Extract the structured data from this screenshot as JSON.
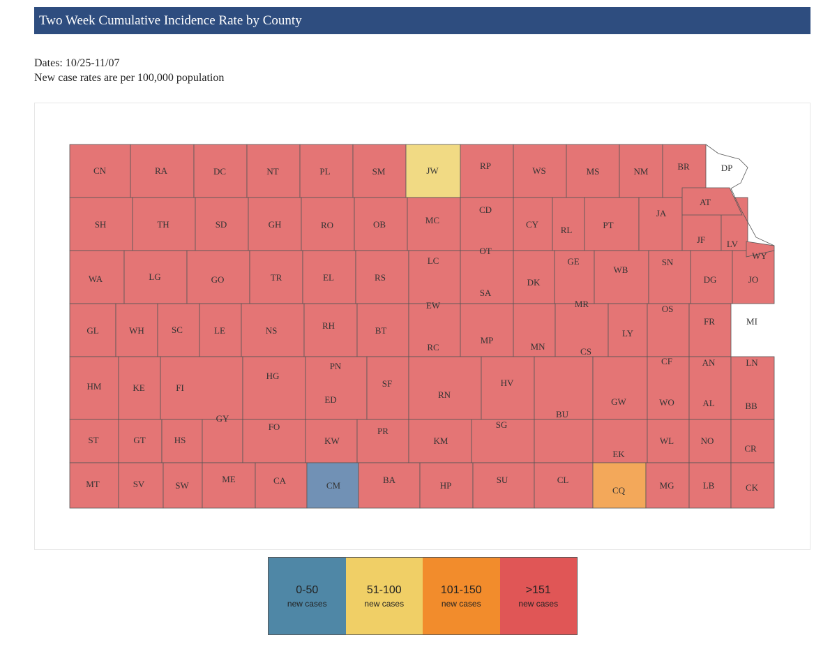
{
  "header": {
    "title": "Two Week Cumulative Incidence Rate by County"
  },
  "info": {
    "dates": "Dates: 10/25-11/07",
    "note": "New case rates are per 100,000 population"
  },
  "colors": {
    "low": "#7191b5",
    "mid": "#f1da84",
    "high": "#f3a85a",
    "very_high": "#e47575",
    "outline": "#555555",
    "legend_low": "#4f87a6",
    "legend_mid": "#f0cf66",
    "legend_high": "#f28c2c",
    "legend_very_high": "#e05656"
  },
  "legend": [
    {
      "range": "0-50",
      "sub": "new cases",
      "category": "low"
    },
    {
      "range": "51-100",
      "sub": "new cases",
      "category": "mid"
    },
    {
      "range": "101-150",
      "sub": "new cases",
      "category": "high"
    },
    {
      "range": ">151",
      "sub": "new cases",
      "category": "very_high"
    }
  ],
  "counties": [
    {
      "abbr": "CN",
      "category": "very_high"
    },
    {
      "abbr": "RA",
      "category": "very_high"
    },
    {
      "abbr": "DC",
      "category": "very_high"
    },
    {
      "abbr": "NT",
      "category": "very_high"
    },
    {
      "abbr": "PL",
      "category": "very_high"
    },
    {
      "abbr": "SM",
      "category": "very_high"
    },
    {
      "abbr": "JW",
      "category": "mid"
    },
    {
      "abbr": "RP",
      "category": "very_high"
    },
    {
      "abbr": "WS",
      "category": "very_high"
    },
    {
      "abbr": "MS",
      "category": "very_high"
    },
    {
      "abbr": "NM",
      "category": "very_high"
    },
    {
      "abbr": "BR",
      "category": "very_high"
    },
    {
      "abbr": "DP",
      "category": "very_high"
    },
    {
      "abbr": "SH",
      "category": "very_high"
    },
    {
      "abbr": "TH",
      "category": "very_high"
    },
    {
      "abbr": "SD",
      "category": "very_high"
    },
    {
      "abbr": "GH",
      "category": "very_high"
    },
    {
      "abbr": "RO",
      "category": "very_high"
    },
    {
      "abbr": "OB",
      "category": "very_high"
    },
    {
      "abbr": "MC",
      "category": "very_high"
    },
    {
      "abbr": "CD",
      "category": "very_high"
    },
    {
      "abbr": "CY",
      "category": "very_high"
    },
    {
      "abbr": "RL",
      "category": "very_high"
    },
    {
      "abbr": "PT",
      "category": "very_high"
    },
    {
      "abbr": "JA",
      "category": "very_high"
    },
    {
      "abbr": "AT",
      "category": "very_high"
    },
    {
      "abbr": "JF",
      "category": "very_high"
    },
    {
      "abbr": "LV",
      "category": "very_high"
    },
    {
      "abbr": "WY",
      "category": "very_high"
    },
    {
      "abbr": "WA",
      "category": "very_high"
    },
    {
      "abbr": "LG",
      "category": "very_high"
    },
    {
      "abbr": "GO",
      "category": "very_high"
    },
    {
      "abbr": "TR",
      "category": "very_high"
    },
    {
      "abbr": "EL",
      "category": "very_high"
    },
    {
      "abbr": "RS",
      "category": "very_high"
    },
    {
      "abbr": "LC",
      "category": "very_high"
    },
    {
      "abbr": "OT",
      "category": "very_high"
    },
    {
      "abbr": "DK",
      "category": "very_high"
    },
    {
      "abbr": "GE",
      "category": "very_high"
    },
    {
      "abbr": "WB",
      "category": "very_high"
    },
    {
      "abbr": "SN",
      "category": "very_high"
    },
    {
      "abbr": "DG",
      "category": "very_high"
    },
    {
      "abbr": "JO",
      "category": "very_high"
    },
    {
      "abbr": "GL",
      "category": "very_high"
    },
    {
      "abbr": "WH",
      "category": "very_high"
    },
    {
      "abbr": "SC",
      "category": "very_high"
    },
    {
      "abbr": "LE",
      "category": "very_high"
    },
    {
      "abbr": "NS",
      "category": "very_high"
    },
    {
      "abbr": "RH",
      "category": "very_high"
    },
    {
      "abbr": "BT",
      "category": "very_high"
    },
    {
      "abbr": "EW",
      "category": "very_high"
    },
    {
      "abbr": "SA",
      "category": "very_high"
    },
    {
      "abbr": "MR",
      "category": "very_high"
    },
    {
      "abbr": "OS",
      "category": "very_high"
    },
    {
      "abbr": "FR",
      "category": "very_high"
    },
    {
      "abbr": "MI",
      "category": "very_high"
    },
    {
      "abbr": "HM",
      "category": "very_high"
    },
    {
      "abbr": "KE",
      "category": "very_high"
    },
    {
      "abbr": "FI",
      "category": "very_high"
    },
    {
      "abbr": "PN",
      "category": "very_high"
    },
    {
      "abbr": "RC",
      "category": "very_high"
    },
    {
      "abbr": "MP",
      "category": "very_high"
    },
    {
      "abbr": "MN",
      "category": "very_high"
    },
    {
      "abbr": "CS",
      "category": "very_high"
    },
    {
      "abbr": "LY",
      "category": "very_high"
    },
    {
      "abbr": "CF",
      "category": "very_high"
    },
    {
      "abbr": "AN",
      "category": "very_high"
    },
    {
      "abbr": "LN",
      "category": "very_high"
    },
    {
      "abbr": "HG",
      "category": "very_high"
    },
    {
      "abbr": "SF",
      "category": "very_high"
    },
    {
      "abbr": "RN",
      "category": "very_high"
    },
    {
      "abbr": "HV",
      "category": "very_high"
    },
    {
      "abbr": "GY",
      "category": "very_high"
    },
    {
      "abbr": "ED",
      "category": "very_high"
    },
    {
      "abbr": "BU",
      "category": "very_high"
    },
    {
      "abbr": "GW",
      "category": "very_high"
    },
    {
      "abbr": "WO",
      "category": "very_high"
    },
    {
      "abbr": "AL",
      "category": "very_high"
    },
    {
      "abbr": "BB",
      "category": "very_high"
    },
    {
      "abbr": "ST",
      "category": "very_high"
    },
    {
      "abbr": "GT",
      "category": "very_high"
    },
    {
      "abbr": "HS",
      "category": "very_high"
    },
    {
      "abbr": "FO",
      "category": "very_high"
    },
    {
      "abbr": "KW",
      "category": "very_high"
    },
    {
      "abbr": "PR",
      "category": "very_high"
    },
    {
      "abbr": "KM",
      "category": "very_high"
    },
    {
      "abbr": "SG",
      "category": "very_high"
    },
    {
      "abbr": "WL",
      "category": "very_high"
    },
    {
      "abbr": "NO",
      "category": "very_high"
    },
    {
      "abbr": "CR",
      "category": "very_high"
    },
    {
      "abbr": "EK",
      "category": "very_high"
    },
    {
      "abbr": "MT",
      "category": "very_high"
    },
    {
      "abbr": "SV",
      "category": "very_high"
    },
    {
      "abbr": "SW",
      "category": "very_high"
    },
    {
      "abbr": "ME",
      "category": "very_high"
    },
    {
      "abbr": "CA",
      "category": "very_high"
    },
    {
      "abbr": "CM",
      "category": "low"
    },
    {
      "abbr": "BA",
      "category": "very_high"
    },
    {
      "abbr": "HP",
      "category": "very_high"
    },
    {
      "abbr": "SU",
      "category": "very_high"
    },
    {
      "abbr": "CL",
      "category": "very_high"
    },
    {
      "abbr": "CQ",
      "category": "high"
    },
    {
      "abbr": "MG",
      "category": "very_high"
    },
    {
      "abbr": "LB",
      "category": "very_high"
    },
    {
      "abbr": "CK",
      "category": "very_high"
    }
  ]
}
